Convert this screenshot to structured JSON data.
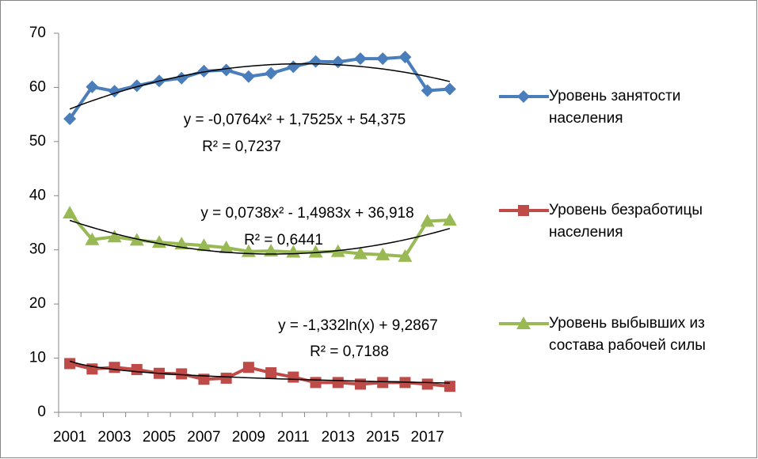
{
  "chart_data": {
    "type": "line",
    "categories": [
      "2001",
      null,
      "2003",
      null,
      "2005",
      null,
      "2007",
      null,
      "2009",
      null,
      "2011",
      null,
      "2013",
      null,
      "2015",
      null,
      "2017",
      null
    ],
    "series": [
      {
        "name": "Уровень занятости населения",
        "color": "#4a7ebb",
        "marker": "diamond",
        "trendline": "poly2",
        "values": [
          54.2,
          60.1,
          59.3,
          60.3,
          61.2,
          61.7,
          63.0,
          63.2,
          62.0,
          62.6,
          63.8,
          64.8,
          64.7,
          65.3,
          65.3,
          65.6,
          59.4,
          59.7
        ]
      },
      {
        "name": "Уровень безработицы населения",
        "color": "#be4b48",
        "marker": "square",
        "trendline": "log",
        "values": [
          9.0,
          8.0,
          8.3,
          7.9,
          7.2,
          7.1,
          6.1,
          6.3,
          8.3,
          7.3,
          6.5,
          5.5,
          5.5,
          5.2,
          5.5,
          5.5,
          5.2,
          4.8
        ]
      },
      {
        "name": "Уровень выбывших из состава рабочей силы",
        "color": "#98b954",
        "marker": "triangle",
        "trendline": "poly2",
        "values": [
          36.8,
          31.9,
          32.4,
          31.8,
          31.4,
          31.1,
          30.8,
          30.4,
          29.7,
          29.8,
          29.6,
          29.6,
          29.7,
          29.3,
          29.1,
          28.8,
          35.3,
          35.5
        ]
      }
    ],
    "annotations": [
      "y = -0,0764x² + 1,7525x + 54,375",
      "R² = 0,7237",
      "y = 0,0738x² - 1,4983x + 36,918",
      "R² = 0,6441",
      "y = -1,332ln(x) + 9,2867",
      "R² = 0,7188"
    ],
    "ylim": [
      0,
      70
    ],
    "yticks": [
      0,
      10,
      20,
      30,
      40,
      50,
      60,
      70
    ],
    "grid": false,
    "legend": "right"
  }
}
